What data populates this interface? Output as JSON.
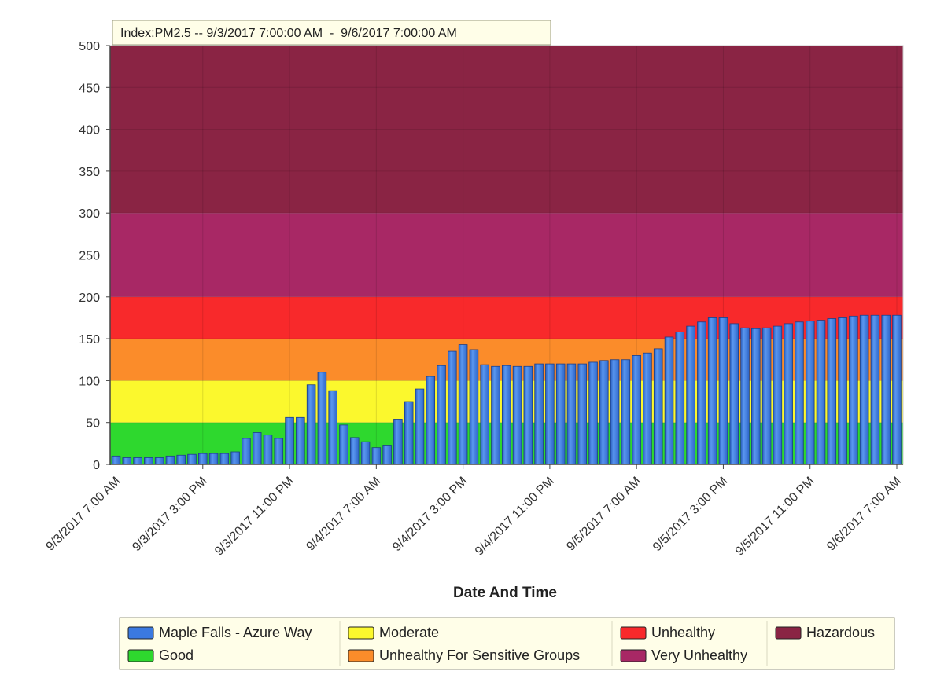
{
  "chart_data": {
    "type": "bar",
    "title": "Index:PM2.5 -- 9/3/2017 7:00:00 AM  -  9/6/2017 7:00:00 AM",
    "xlabel": "Date And Time",
    "ylabel": "",
    "ylim": [
      0,
      500
    ],
    "y_ticks": [
      0,
      50,
      100,
      150,
      200,
      250,
      300,
      350,
      400,
      450,
      500
    ],
    "x_tick_labels": [
      "9/3/2017 7:00 AM",
      "9/3/2017 3:00 PM",
      "9/3/2017 11:00 PM",
      "9/4/2017 7:00 AM",
      "9/4/2017 3:00 PM",
      "9/4/2017 11:00 PM",
      "9/5/2017 7:00 AM",
      "9/5/2017 3:00 PM",
      "9/5/2017 11:00 PM",
      "9/6/2017 7:00 AM"
    ],
    "x_tick_hours": [
      0,
      8,
      16,
      24,
      32,
      40,
      48,
      56,
      64,
      72
    ],
    "grid": true,
    "bands": [
      {
        "name": "Good",
        "from": 0,
        "to": 50,
        "color": "#2ed82e"
      },
      {
        "name": "Moderate",
        "from": 50,
        "to": 100,
        "color": "#fbf82d"
      },
      {
        "name": "Unhealthy For Sensitive Groups",
        "from": 100,
        "to": 150,
        "color": "#fb8c2a"
      },
      {
        "name": "Unhealthy",
        "from": 150,
        "to": 200,
        "color": "#f8292b"
      },
      {
        "name": "Very Unhealthy",
        "from": 200,
        "to": 300,
        "color": "#a82865"
      },
      {
        "name": "Hazardous",
        "from": 300,
        "to": 500,
        "color": "#8a2444"
      }
    ],
    "series": [
      {
        "name": "Maple Falls - Azure Way",
        "color": "#3b79e0",
        "values": [
          10,
          8,
          8,
          8,
          8,
          10,
          11,
          12,
          13,
          13,
          13,
          15,
          31,
          38,
          35,
          31,
          56,
          56,
          95,
          110,
          88,
          47,
          32,
          27,
          20,
          23,
          54,
          75,
          90,
          105,
          118,
          135,
          143,
          137,
          119,
          117,
          118,
          117,
          117,
          120,
          120,
          120,
          120,
          120,
          122,
          124,
          125,
          125,
          130,
          133,
          138,
          152,
          158,
          165,
          170,
          175,
          175,
          168,
          163,
          162,
          163,
          165,
          168,
          170,
          171,
          172,
          174,
          175,
          177,
          178,
          178,
          178,
          178
        ]
      }
    ],
    "legend_placement": "bottom"
  }
}
